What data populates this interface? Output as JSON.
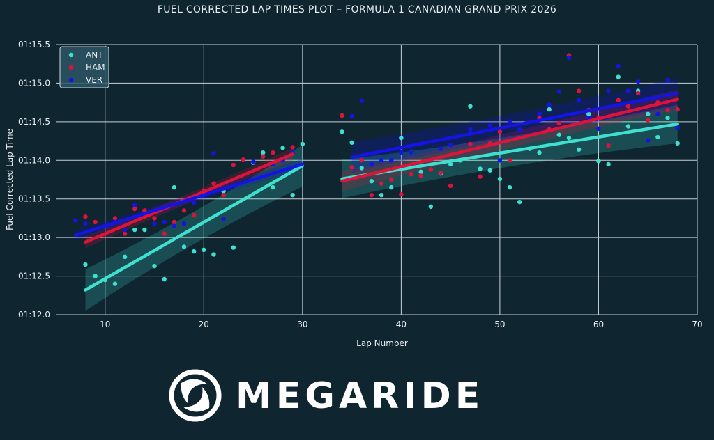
{
  "chart_data": {
    "type": "scatter",
    "title": "FUEL CORRECTED LAP TIMES PLOT – FORMULA 1 CANADIAN GRAND PRIX 2026",
    "xlabel": "Lap Number",
    "ylabel": "Fuel Corrected Lap Time",
    "xlim": [
      5,
      70
    ],
    "ylim": [
      72.0,
      75.5
    ],
    "x_ticks": [
      10,
      20,
      30,
      40,
      50,
      60,
      70
    ],
    "y_ticks": [
      {
        "value": 72.0,
        "label": "01:12.0"
      },
      {
        "value": 72.5,
        "label": "01:12.5"
      },
      {
        "value": 73.0,
        "label": "01:13.0"
      },
      {
        "value": 73.5,
        "label": "01:13.5"
      },
      {
        "value": 74.0,
        "label": "01:14.0"
      },
      {
        "value": 74.5,
        "label": "01:14.5"
      },
      {
        "value": 75.0,
        "label": "01:15.0"
      },
      {
        "value": 75.5,
        "label": "01:15.5"
      }
    ],
    "grid": true,
    "legend_position": "top-left",
    "series": [
      {
        "name": "ANT",
        "color": "#3fe0d0",
        "points": [
          [
            8,
            72.65
          ],
          [
            9,
            72.5
          ],
          [
            10,
            72.45
          ],
          [
            11,
            72.4
          ],
          [
            12,
            72.75
          ],
          [
            13,
            73.1
          ],
          [
            14,
            73.1
          ],
          [
            15,
            72.63
          ],
          [
            16,
            72.46
          ],
          [
            17,
            73.65
          ],
          [
            18,
            72.88
          ],
          [
            19,
            72.82
          ],
          [
            20,
            72.84
          ],
          [
            21,
            72.78
          ],
          [
            22,
            73.6
          ],
          [
            23,
            72.87
          ],
          [
            25,
            73.97
          ],
          [
            26,
            74.1
          ],
          [
            27,
            73.65
          ],
          [
            28,
            74.16
          ],
          [
            29,
            73.55
          ],
          [
            30,
            74.21
          ],
          [
            34,
            74.37
          ],
          [
            35,
            74.23
          ],
          [
            36,
            73.9
          ],
          [
            37,
            73.73
          ],
          [
            38,
            73.55
          ],
          [
            39,
            73.65
          ],
          [
            40,
            74.29
          ],
          [
            41,
            74.1
          ],
          [
            42,
            73.85
          ],
          [
            43,
            73.4
          ],
          [
            44,
            73.83
          ],
          [
            45,
            73.95
          ],
          [
            46,
            74.0
          ],
          [
            47,
            74.7
          ],
          [
            48,
            73.89
          ],
          [
            49,
            73.87
          ],
          [
            50,
            73.76
          ],
          [
            51,
            73.65
          ],
          [
            52,
            73.46
          ],
          [
            53,
            74.15
          ],
          [
            54,
            74.1
          ],
          [
            55,
            74.66
          ],
          [
            56,
            74.33
          ],
          [
            57,
            74.29
          ],
          [
            58,
            74.14
          ],
          [
            59,
            74.6
          ],
          [
            60,
            73.99
          ],
          [
            61,
            73.95
          ],
          [
            62,
            75.08
          ],
          [
            63,
            74.44
          ],
          [
            64,
            74.9
          ],
          [
            65,
            74.6
          ],
          [
            66,
            74.3
          ],
          [
            67,
            74.55
          ],
          [
            68,
            74.22
          ]
        ],
        "segments": [
          {
            "x": [
              8,
              30
            ],
            "y": [
              72.32,
              73.93
            ],
            "ci": 0.27
          },
          {
            "x": [
              34,
              68
            ],
            "y": [
              73.76,
              74.47
            ],
            "ci": 0.25
          }
        ]
      },
      {
        "name": "HAM",
        "color": "#dc143c",
        "points": [
          [
            8,
            73.27
          ],
          [
            9,
            73.2
          ],
          [
            11,
            73.25
          ],
          [
            12,
            73.05
          ],
          [
            13,
            73.37
          ],
          [
            14,
            73.35
          ],
          [
            15,
            73.25
          ],
          [
            16,
            73.05
          ],
          [
            17,
            73.2
          ],
          [
            18,
            73.35
          ],
          [
            19,
            73.29
          ],
          [
            20,
            73.6
          ],
          [
            21,
            73.7
          ],
          [
            22,
            73.55
          ],
          [
            23,
            73.94
          ],
          [
            24,
            74.01
          ],
          [
            26,
            74.05
          ],
          [
            27,
            74.1
          ],
          [
            28,
            74.0
          ],
          [
            29,
            74.17
          ],
          [
            34,
            74.58
          ],
          [
            35,
            73.91
          ],
          [
            36,
            74.0
          ],
          [
            37,
            73.55
          ],
          [
            38,
            73.7
          ],
          [
            39,
            73.75
          ],
          [
            40,
            73.56
          ],
          [
            41,
            73.82
          ],
          [
            42,
            73.8
          ],
          [
            43,
            73.88
          ],
          [
            44,
            73.84
          ],
          [
            45,
            73.67
          ],
          [
            47,
            74.21
          ],
          [
            48,
            73.79
          ],
          [
            49,
            74.22
          ],
          [
            50,
            74.37
          ],
          [
            51,
            74.0
          ],
          [
            54,
            74.55
          ],
          [
            55,
            74.4
          ],
          [
            56,
            74.48
          ],
          [
            57,
            75.36
          ],
          [
            58,
            74.9
          ],
          [
            59,
            74.65
          ],
          [
            60,
            74.55
          ],
          [
            61,
            74.19
          ],
          [
            62,
            74.78
          ],
          [
            63,
            74.7
          ],
          [
            64,
            74.87
          ],
          [
            65,
            74.52
          ],
          [
            66,
            74.75
          ],
          [
            67,
            74.65
          ],
          [
            68,
            74.66
          ]
        ],
        "segments": [
          {
            "x": [
              8,
              29
            ],
            "y": [
              72.94,
              74.08
            ],
            "ci": 0.08
          },
          {
            "x": [
              34,
              68
            ],
            "y": [
              73.73,
              74.79
            ],
            "ci": 0.13
          }
        ]
      },
      {
        "name": "VER",
        "color": "#1414e6",
        "points": [
          [
            7,
            73.22
          ],
          [
            8,
            73.18
          ],
          [
            10,
            73.15
          ],
          [
            11,
            73.2
          ],
          [
            12,
            73.1
          ],
          [
            13,
            73.42
          ],
          [
            15,
            73.18
          ],
          [
            16,
            73.2
          ],
          [
            17,
            73.15
          ],
          [
            18,
            73.18
          ],
          [
            19,
            73.45
          ],
          [
            20,
            73.55
          ],
          [
            21,
            74.09
          ],
          [
            22,
            73.24
          ],
          [
            25,
            73.98
          ],
          [
            27,
            73.95
          ],
          [
            28,
            74.0
          ],
          [
            29,
            74.1
          ],
          [
            35,
            74.57
          ],
          [
            36,
            74.77
          ],
          [
            37,
            73.95
          ],
          [
            38,
            74.0
          ],
          [
            39,
            74.0
          ],
          [
            40,
            74.1
          ],
          [
            41,
            74.1
          ],
          [
            44,
            74.15
          ],
          [
            45,
            74.2
          ],
          [
            47,
            74.4
          ],
          [
            49,
            74.45
          ],
          [
            50,
            74.0
          ],
          [
            51,
            74.5
          ],
          [
            52,
            74.4
          ],
          [
            54,
            74.6
          ],
          [
            55,
            74.72
          ],
          [
            56,
            74.89
          ],
          [
            57,
            75.33
          ],
          [
            58,
            74.78
          ],
          [
            59,
            74.55
          ],
          [
            60,
            74.41
          ],
          [
            61,
            74.9
          ],
          [
            62,
            75.22
          ],
          [
            63,
            74.9
          ],
          [
            64,
            75.02
          ],
          [
            65,
            74.26
          ],
          [
            66,
            74.6
          ],
          [
            67,
            75.04
          ],
          [
            68,
            74.42
          ]
        ],
        "segments": [
          {
            "x": [
              7,
              30
            ],
            "y": [
              73.03,
              73.95
            ],
            "ci": 0.07
          },
          {
            "x": [
              35,
              68
            ],
            "y": [
              74.04,
              74.87
            ],
            "ci": 0.2
          }
        ]
      }
    ]
  },
  "branding": {
    "logo_text": "MEGARIDE"
  }
}
